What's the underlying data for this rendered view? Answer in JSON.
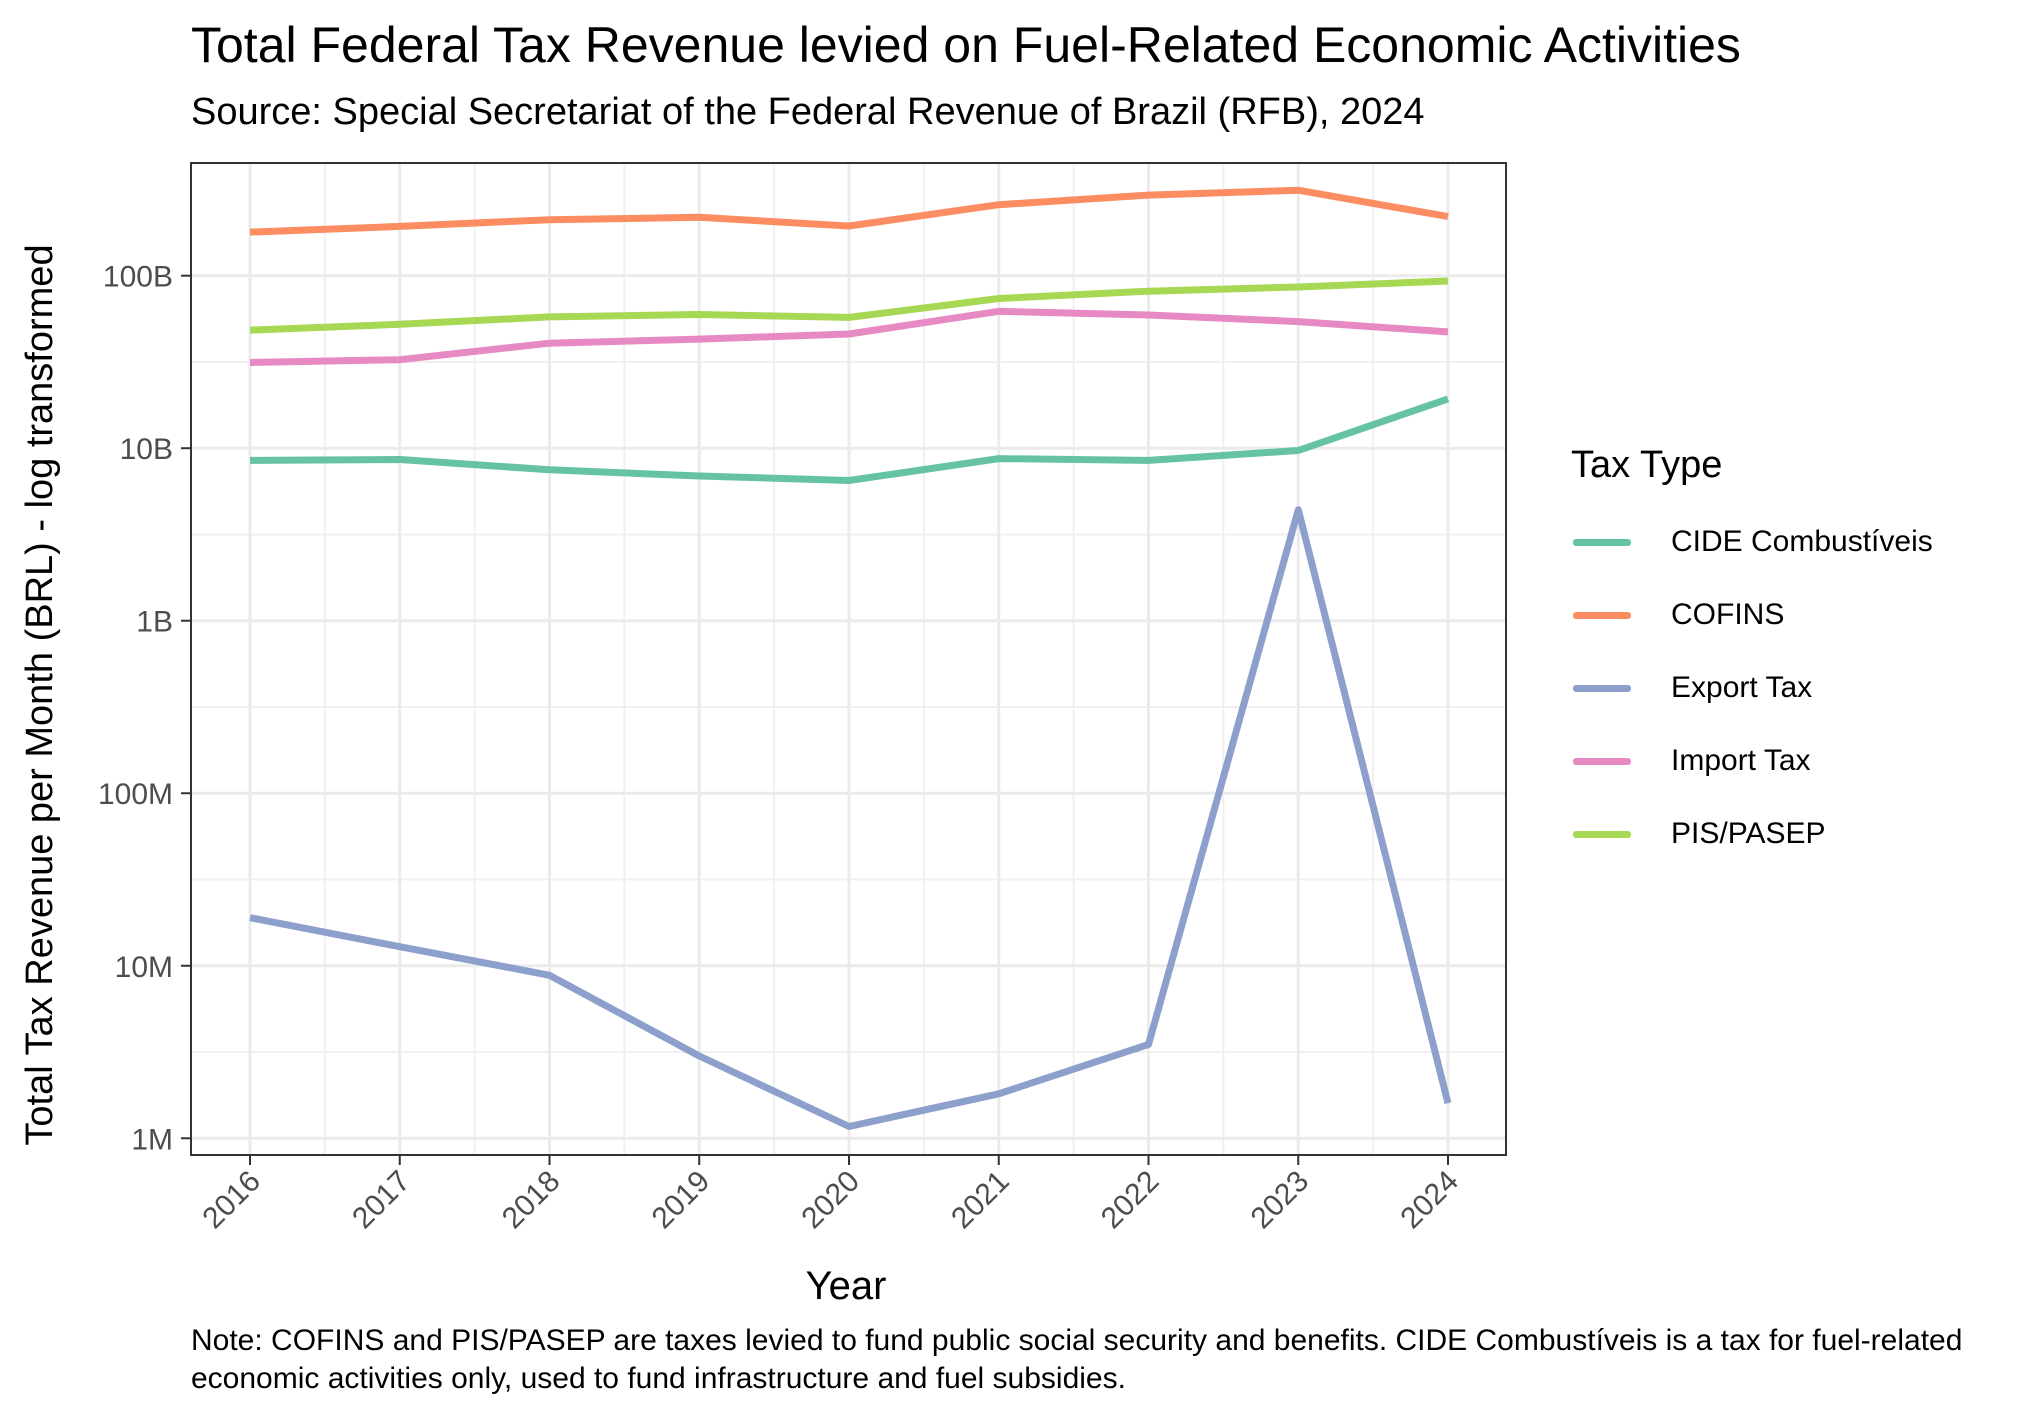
{
  "chart_data": {
    "type": "line",
    "title": "Total Federal Tax Revenue levied on Fuel-Related Economic Activities",
    "subtitle": "Source: Special Secretariat of the Federal Revenue of Brazil (RFB), 2024",
    "xlabel": "Year",
    "ylabel": "Total Tax Revenue per Month (BRL) - log transformed",
    "caption": "Note: COFINS and PIS/PASEP are taxes levied to fund public social security and benefits. CIDE Combustíveis is a tax for fuel-related economic activities only, used to fund infrastructure and fuel subsidies.",
    "y_scale": "log10",
    "ylim": [
      800000,
      450000000000
    ],
    "y_ticks": [
      1000000,
      10000000,
      100000000,
      1000000000,
      10000000000,
      100000000000
    ],
    "y_tick_labels": [
      "1M",
      "10M",
      "100M",
      "1B",
      "10B",
      "100B"
    ],
    "x": [
      "2016",
      "2017",
      "2018",
      "2019",
      "2020",
      "2021",
      "2022",
      "2023",
      "2024"
    ],
    "legend_title": "Tax Type",
    "legend_position": "right",
    "grid": true,
    "series": [
      {
        "name": "CIDE Combustíveis",
        "color": "#66c2a5",
        "values": [
          8500000000,
          8600000000,
          7500000000,
          6900000000,
          6500000000,
          8700000000,
          8500000000,
          9700000000,
          19300000000
        ]
      },
      {
        "name": "COFINS",
        "color": "#fc8d62",
        "values": [
          179000000000,
          193000000000,
          211000000000,
          218000000000,
          194000000000,
          258000000000,
          293000000000,
          313000000000,
          220000000000
        ]
      },
      {
        "name": "Export Tax",
        "color": "#8da0cb",
        "values": [
          19000000,
          12900000,
          8800000,
          3000000,
          1170000,
          1810000,
          3500000,
          4400000000,
          1600000
        ]
      },
      {
        "name": "Import Tax",
        "color": "#e78ac3",
        "values": [
          31400000000,
          32600000000,
          40600000000,
          42900000000,
          45900000000,
          62200000000,
          59200000000,
          54200000000,
          47200000000
        ]
      },
      {
        "name": "PIS/PASEP",
        "color": "#a6d854",
        "values": [
          48400000000,
          52300000000,
          57700000000,
          59600000000,
          57300000000,
          73800000000,
          81300000000,
          86000000000,
          93200000000
        ]
      }
    ]
  }
}
